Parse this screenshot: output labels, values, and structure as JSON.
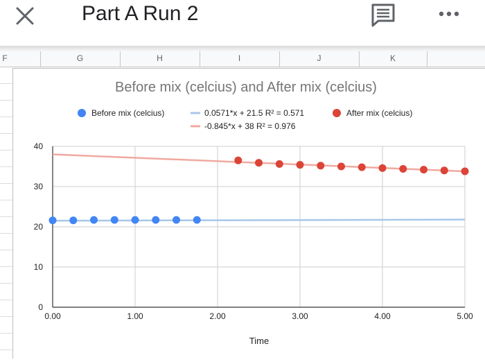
{
  "header": {
    "title": "Part A Run 2",
    "close_icon": "close-icon",
    "comment_icon": "comment-icon",
    "more_icon": "more-horizontal-icon"
  },
  "columns": [
    "F",
    "G",
    "H",
    "I",
    "J",
    "K"
  ],
  "chart_data": {
    "type": "scatter",
    "title": "Before mix (celcius) and After mix (celcius)",
    "xlabel": "Time",
    "ylabel": "",
    "xlim": [
      0,
      5
    ],
    "ylim": [
      0,
      40
    ],
    "xticks": [
      "0.00",
      "1.00",
      "2.00",
      "3.00",
      "4.00",
      "5.00"
    ],
    "yticks": [
      "0",
      "10",
      "20",
      "30",
      "40"
    ],
    "grid": true,
    "legend_position": "top",
    "series": [
      {
        "name": "Before mix (celcius)",
        "color": "#4285f4",
        "x": [
          0,
          0.25,
          0.5,
          0.75,
          1.0,
          1.25,
          1.5,
          1.75
        ],
        "y": [
          21.6,
          21.6,
          21.7,
          21.7,
          21.7,
          21.7,
          21.7,
          21.7
        ]
      },
      {
        "name": "After mix (celcius)",
        "color": "#db4437",
        "x": [
          2.25,
          2.5,
          2.75,
          3.0,
          3.25,
          3.5,
          3.75,
          4.0,
          4.25,
          4.5,
          4.75,
          5.0
        ],
        "y": [
          36.5,
          35.9,
          35.6,
          35.4,
          35.2,
          35.0,
          34.8,
          34.6,
          34.4,
          34.2,
          34.0,
          33.8
        ]
      }
    ],
    "trendlines": [
      {
        "label": "0.0571*x + 21.5 R² = 0.571",
        "slope": 0.0571,
        "intercept": 21.5,
        "color": "#a8c7e8"
      },
      {
        "label": "-0.845*x + 38 R² = 0.976",
        "slope": -0.845,
        "intercept": 38,
        "color": "#f0a99f"
      }
    ]
  }
}
